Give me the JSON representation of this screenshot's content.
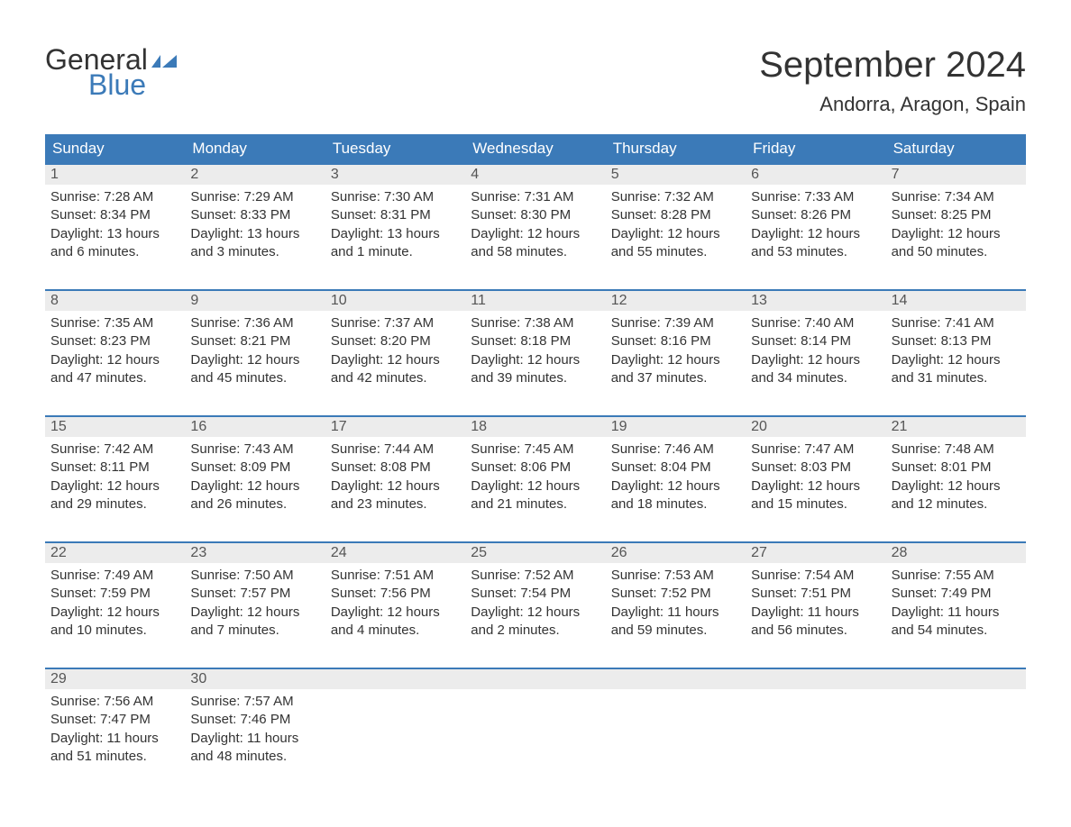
{
  "logo": {
    "text_top": "General",
    "text_bottom": "Blue",
    "icon_color": "#3b7ab8"
  },
  "title": "September 2024",
  "location": "Andorra, Aragon, Spain",
  "colors": {
    "header_bg": "#3b7ab8",
    "header_text": "#ffffff",
    "daynum_bg": "#ececec",
    "daynum_text": "#555555",
    "border": "#3b7ab8",
    "body_text": "#333333",
    "page_bg": "#ffffff"
  },
  "weekdays": [
    "Sunday",
    "Monday",
    "Tuesday",
    "Wednesday",
    "Thursday",
    "Friday",
    "Saturday"
  ],
  "weeks": [
    [
      {
        "day": "1",
        "sunrise": "Sunrise: 7:28 AM",
        "sunset": "Sunset: 8:34 PM",
        "daylight1": "Daylight: 13 hours",
        "daylight2": "and 6 minutes."
      },
      {
        "day": "2",
        "sunrise": "Sunrise: 7:29 AM",
        "sunset": "Sunset: 8:33 PM",
        "daylight1": "Daylight: 13 hours",
        "daylight2": "and 3 minutes."
      },
      {
        "day": "3",
        "sunrise": "Sunrise: 7:30 AM",
        "sunset": "Sunset: 8:31 PM",
        "daylight1": "Daylight: 13 hours",
        "daylight2": "and 1 minute."
      },
      {
        "day": "4",
        "sunrise": "Sunrise: 7:31 AM",
        "sunset": "Sunset: 8:30 PM",
        "daylight1": "Daylight: 12 hours",
        "daylight2": "and 58 minutes."
      },
      {
        "day": "5",
        "sunrise": "Sunrise: 7:32 AM",
        "sunset": "Sunset: 8:28 PM",
        "daylight1": "Daylight: 12 hours",
        "daylight2": "and 55 minutes."
      },
      {
        "day": "6",
        "sunrise": "Sunrise: 7:33 AM",
        "sunset": "Sunset: 8:26 PM",
        "daylight1": "Daylight: 12 hours",
        "daylight2": "and 53 minutes."
      },
      {
        "day": "7",
        "sunrise": "Sunrise: 7:34 AM",
        "sunset": "Sunset: 8:25 PM",
        "daylight1": "Daylight: 12 hours",
        "daylight2": "and 50 minutes."
      }
    ],
    [
      {
        "day": "8",
        "sunrise": "Sunrise: 7:35 AM",
        "sunset": "Sunset: 8:23 PM",
        "daylight1": "Daylight: 12 hours",
        "daylight2": "and 47 minutes."
      },
      {
        "day": "9",
        "sunrise": "Sunrise: 7:36 AM",
        "sunset": "Sunset: 8:21 PM",
        "daylight1": "Daylight: 12 hours",
        "daylight2": "and 45 minutes."
      },
      {
        "day": "10",
        "sunrise": "Sunrise: 7:37 AM",
        "sunset": "Sunset: 8:20 PM",
        "daylight1": "Daylight: 12 hours",
        "daylight2": "and 42 minutes."
      },
      {
        "day": "11",
        "sunrise": "Sunrise: 7:38 AM",
        "sunset": "Sunset: 8:18 PM",
        "daylight1": "Daylight: 12 hours",
        "daylight2": "and 39 minutes."
      },
      {
        "day": "12",
        "sunrise": "Sunrise: 7:39 AM",
        "sunset": "Sunset: 8:16 PM",
        "daylight1": "Daylight: 12 hours",
        "daylight2": "and 37 minutes."
      },
      {
        "day": "13",
        "sunrise": "Sunrise: 7:40 AM",
        "sunset": "Sunset: 8:14 PM",
        "daylight1": "Daylight: 12 hours",
        "daylight2": "and 34 minutes."
      },
      {
        "day": "14",
        "sunrise": "Sunrise: 7:41 AM",
        "sunset": "Sunset: 8:13 PM",
        "daylight1": "Daylight: 12 hours",
        "daylight2": "and 31 minutes."
      }
    ],
    [
      {
        "day": "15",
        "sunrise": "Sunrise: 7:42 AM",
        "sunset": "Sunset: 8:11 PM",
        "daylight1": "Daylight: 12 hours",
        "daylight2": "and 29 minutes."
      },
      {
        "day": "16",
        "sunrise": "Sunrise: 7:43 AM",
        "sunset": "Sunset: 8:09 PM",
        "daylight1": "Daylight: 12 hours",
        "daylight2": "and 26 minutes."
      },
      {
        "day": "17",
        "sunrise": "Sunrise: 7:44 AM",
        "sunset": "Sunset: 8:08 PM",
        "daylight1": "Daylight: 12 hours",
        "daylight2": "and 23 minutes."
      },
      {
        "day": "18",
        "sunrise": "Sunrise: 7:45 AM",
        "sunset": "Sunset: 8:06 PM",
        "daylight1": "Daylight: 12 hours",
        "daylight2": "and 21 minutes."
      },
      {
        "day": "19",
        "sunrise": "Sunrise: 7:46 AM",
        "sunset": "Sunset: 8:04 PM",
        "daylight1": "Daylight: 12 hours",
        "daylight2": "and 18 minutes."
      },
      {
        "day": "20",
        "sunrise": "Sunrise: 7:47 AM",
        "sunset": "Sunset: 8:03 PM",
        "daylight1": "Daylight: 12 hours",
        "daylight2": "and 15 minutes."
      },
      {
        "day": "21",
        "sunrise": "Sunrise: 7:48 AM",
        "sunset": "Sunset: 8:01 PM",
        "daylight1": "Daylight: 12 hours",
        "daylight2": "and 12 minutes."
      }
    ],
    [
      {
        "day": "22",
        "sunrise": "Sunrise: 7:49 AM",
        "sunset": "Sunset: 7:59 PM",
        "daylight1": "Daylight: 12 hours",
        "daylight2": "and 10 minutes."
      },
      {
        "day": "23",
        "sunrise": "Sunrise: 7:50 AM",
        "sunset": "Sunset: 7:57 PM",
        "daylight1": "Daylight: 12 hours",
        "daylight2": "and 7 minutes."
      },
      {
        "day": "24",
        "sunrise": "Sunrise: 7:51 AM",
        "sunset": "Sunset: 7:56 PM",
        "daylight1": "Daylight: 12 hours",
        "daylight2": "and 4 minutes."
      },
      {
        "day": "25",
        "sunrise": "Sunrise: 7:52 AM",
        "sunset": "Sunset: 7:54 PM",
        "daylight1": "Daylight: 12 hours",
        "daylight2": "and 2 minutes."
      },
      {
        "day": "26",
        "sunrise": "Sunrise: 7:53 AM",
        "sunset": "Sunset: 7:52 PM",
        "daylight1": "Daylight: 11 hours",
        "daylight2": "and 59 minutes."
      },
      {
        "day": "27",
        "sunrise": "Sunrise: 7:54 AM",
        "sunset": "Sunset: 7:51 PM",
        "daylight1": "Daylight: 11 hours",
        "daylight2": "and 56 minutes."
      },
      {
        "day": "28",
        "sunrise": "Sunrise: 7:55 AM",
        "sunset": "Sunset: 7:49 PM",
        "daylight1": "Daylight: 11 hours",
        "daylight2": "and 54 minutes."
      }
    ],
    [
      {
        "day": "29",
        "sunrise": "Sunrise: 7:56 AM",
        "sunset": "Sunset: 7:47 PM",
        "daylight1": "Daylight: 11 hours",
        "daylight2": "and 51 minutes."
      },
      {
        "day": "30",
        "sunrise": "Sunrise: 7:57 AM",
        "sunset": "Sunset: 7:46 PM",
        "daylight1": "Daylight: 11 hours",
        "daylight2": "and 48 minutes."
      },
      {
        "empty": true
      },
      {
        "empty": true
      },
      {
        "empty": true
      },
      {
        "empty": true
      },
      {
        "empty": true
      }
    ]
  ]
}
